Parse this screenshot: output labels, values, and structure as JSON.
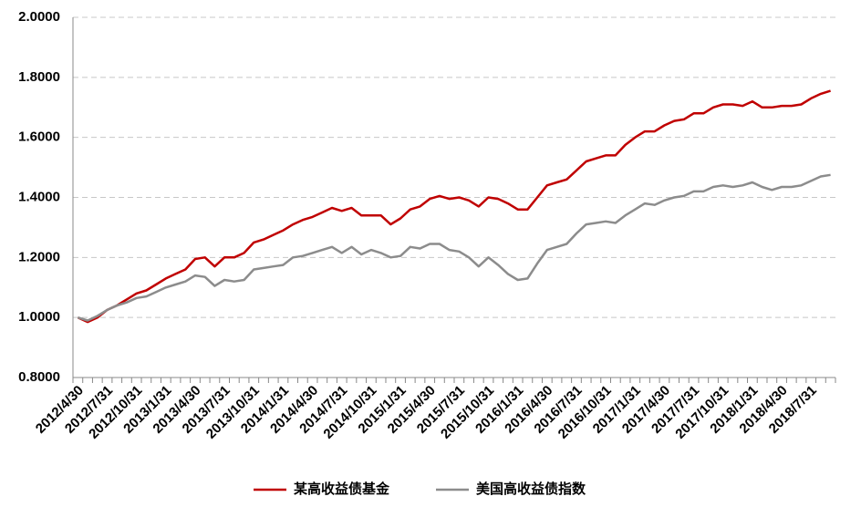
{
  "chart_data": {
    "type": "line",
    "categories": [
      "2012/4/30",
      null,
      null,
      "2012/7/31",
      null,
      null,
      "2012/10/31",
      null,
      null,
      "2013/1/31",
      null,
      null,
      "2013/4/30",
      null,
      null,
      "2013/7/31",
      null,
      null,
      "2013/10/31",
      null,
      null,
      "2014/1/31",
      null,
      null,
      "2014/4/30",
      null,
      null,
      "2014/7/31",
      null,
      null,
      "2014/10/31",
      null,
      null,
      "2015/1/31",
      null,
      null,
      "2015/4/30",
      null,
      null,
      "2015/7/31",
      null,
      null,
      "2015/10/31",
      null,
      null,
      "2016/1/31",
      null,
      null,
      "2016/4/30",
      null,
      null,
      "2016/7/31",
      null,
      null,
      "2016/10/31",
      null,
      null,
      "2017/1/31",
      null,
      null,
      "2017/4/30",
      null,
      null,
      "2017/7/31",
      null,
      null,
      "2017/10/31",
      null,
      null,
      "2018/1/31",
      null,
      null,
      "2018/4/30",
      null,
      null,
      "2018/7/31",
      null,
      null
    ],
    "series": [
      {
        "name": "某高收益债基金",
        "color": "#c00000",
        "values": [
          1.0,
          0.985,
          1.0,
          1.025,
          1.04,
          1.06,
          1.08,
          1.09,
          1.11,
          1.13,
          1.145,
          1.16,
          1.195,
          1.2,
          1.17,
          1.2,
          1.2,
          1.215,
          1.25,
          1.26,
          1.275,
          1.29,
          1.31,
          1.325,
          1.335,
          1.35,
          1.365,
          1.355,
          1.365,
          1.34,
          1.34,
          1.34,
          1.31,
          1.33,
          1.36,
          1.37,
          1.395,
          1.405,
          1.395,
          1.4,
          1.39,
          1.37,
          1.4,
          1.395,
          1.38,
          1.36,
          1.36,
          1.4,
          1.44,
          1.45,
          1.46,
          1.49,
          1.52,
          1.53,
          1.54,
          1.54,
          1.575,
          1.6,
          1.62,
          1.62,
          1.64,
          1.655,
          1.66,
          1.68,
          1.68,
          1.7,
          1.71,
          1.71,
          1.705,
          1.72,
          1.7,
          1.7,
          1.705,
          1.705,
          1.71,
          1.73,
          1.745,
          1.755
        ]
      },
      {
        "name": "美国高收益债指数",
        "color": "#8c8c8c",
        "values": [
          1.0,
          0.99,
          1.005,
          1.025,
          1.04,
          1.05,
          1.065,
          1.07,
          1.085,
          1.1,
          1.11,
          1.12,
          1.14,
          1.135,
          1.105,
          1.125,
          1.12,
          1.125,
          1.16,
          1.165,
          1.17,
          1.175,
          1.2,
          1.205,
          1.215,
          1.225,
          1.235,
          1.215,
          1.235,
          1.21,
          1.225,
          1.215,
          1.2,
          1.205,
          1.235,
          1.23,
          1.245,
          1.245,
          1.225,
          1.22,
          1.2,
          1.17,
          1.2,
          1.175,
          1.145,
          1.125,
          1.13,
          1.18,
          1.225,
          1.235,
          1.245,
          1.28,
          1.31,
          1.315,
          1.32,
          1.315,
          1.34,
          1.36,
          1.38,
          1.375,
          1.39,
          1.4,
          1.405,
          1.42,
          1.42,
          1.435,
          1.44,
          1.435,
          1.44,
          1.45,
          1.435,
          1.425,
          1.435,
          1.435,
          1.44,
          1.455,
          1.47,
          1.475
        ]
      }
    ],
    "ylim": [
      0.8,
      2.0
    ],
    "yticks": [
      {
        "value": 0.8,
        "label": "0.8000"
      },
      {
        "value": 1.0,
        "label": "1.0000"
      },
      {
        "value": 1.2,
        "label": "1.2000"
      },
      {
        "value": 1.4,
        "label": "1.4000"
      },
      {
        "value": 1.6,
        "label": "1.6000"
      },
      {
        "value": 1.8,
        "label": "1.8000"
      },
      {
        "value": 2.0,
        "label": "2.0000"
      }
    ],
    "grid": true,
    "legend": "bottom"
  }
}
